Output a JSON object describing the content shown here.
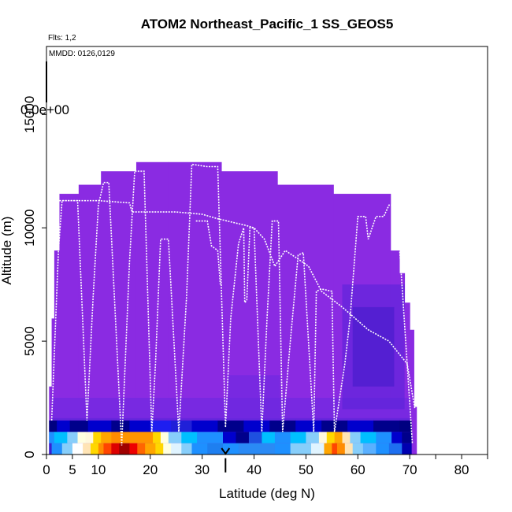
{
  "chart_data": {
    "type": "heatmap",
    "title": "ATOM2 Northeast_Pacific_1 SS_GEOS5",
    "subtitle": "Flts: 1,2",
    "annotation": "MMDD: 0126,0129",
    "colorbar_label": "0.0e+00",
    "xlabel": "Latitude (deg N)",
    "ylabel": "Altitude (m)",
    "xlim": [
      0,
      85
    ],
    "ylim": [
      0,
      18000
    ],
    "x_ticks": [
      0,
      5,
      10,
      20,
      30,
      40,
      50,
      60,
      70,
      80
    ],
    "x_minor_ticks": [
      75,
      85
    ],
    "y_ticks": [
      0,
      5000,
      10000,
      15000
    ],
    "grid": false,
    "background_color": "#8a2be2",
    "profile_color": "#ffffff",
    "arrow_marker_lat": 34.5,
    "column_tops": [
      {
        "x0": 0.5,
        "x1": 1.0,
        "top": 3000
      },
      {
        "x0": 1.0,
        "x1": 1.5,
        "top": 6000
      },
      {
        "x0": 1.5,
        "x1": 2.5,
        "top": 9000
      },
      {
        "x0": 2.5,
        "x1": 6.2,
        "top": 11500
      },
      {
        "x0": 6.2,
        "x1": 10.5,
        "top": 11900
      },
      {
        "x0": 10.5,
        "x1": 17.3,
        "top": 12500
      },
      {
        "x0": 17.3,
        "x1": 23.5,
        "top": 12900
      },
      {
        "x0": 23.5,
        "x1": 33.7,
        "top": 12900
      },
      {
        "x0": 33.7,
        "x1": 44.5,
        "top": 12500
      },
      {
        "x0": 44.5,
        "x1": 55.3,
        "top": 11900
      },
      {
        "x0": 55.3,
        "x1": 66.3,
        "top": 11500
      },
      {
        "x0": 66.3,
        "x1": 68.0,
        "top": 9000
      },
      {
        "x0": 68.0,
        "x1": 69.0,
        "top": 8000
      },
      {
        "x0": 69.0,
        "x1": 70.0,
        "top": 6700
      },
      {
        "x0": 70.0,
        "x1": 70.8,
        "top": 5500
      },
      {
        "x0": 70.8,
        "x1": 71.3,
        "top": 2100
      }
    ],
    "blue_patches": [
      {
        "x": [
          1,
          70
        ],
        "y": [
          1000,
          1600
        ],
        "color": "#3f1fd0"
      },
      {
        "x": [
          1,
          70
        ],
        "y": [
          1500,
          2500
        ],
        "color": "#6a28e0"
      },
      {
        "x": [
          57,
          69
        ],
        "y": [
          2000,
          7500
        ],
        "color": "#5522d8"
      },
      {
        "x": [
          59,
          67
        ],
        "y": [
          3000,
          6500
        ],
        "color": "#4019c8"
      },
      {
        "x": [
          35,
          45
        ],
        "y": [
          1500,
          3500
        ],
        "color": "#6a28e0"
      }
    ],
    "bands": [
      {
        "name": "band_0_500",
        "y": [
          0,
          500
        ],
        "segments": [
          [
            0.5,
            1.0,
            "#3a1fd0"
          ],
          [
            1.0,
            3.0,
            "#1e90ff"
          ],
          [
            3.0,
            5.0,
            "#87cefa"
          ],
          [
            5.0,
            7.0,
            "#ffffff"
          ],
          [
            7.0,
            8.5,
            "#ffe4b5"
          ],
          [
            8.5,
            10.0,
            "#ffd700"
          ],
          [
            10.0,
            11.0,
            "#ff8c00"
          ],
          [
            11.0,
            12.5,
            "#ff4500"
          ],
          [
            12.5,
            14.0,
            "#dd0000"
          ],
          [
            14.0,
            16.0,
            "#a00000"
          ],
          [
            16.0,
            17.5,
            "#ee0000"
          ],
          [
            17.5,
            19.0,
            "#ff6600"
          ],
          [
            19.0,
            21.0,
            "#ffa500"
          ],
          [
            21.0,
            22.5,
            "#ffd700"
          ],
          [
            22.5,
            24.0,
            "#ffffe0"
          ],
          [
            24.0,
            26.0,
            "#e0f4ff"
          ],
          [
            26.0,
            28.0,
            "#87cefa"
          ],
          [
            28.0,
            31.0,
            "#1e90ff"
          ],
          [
            31.0,
            34.0,
            "#1e7ff0"
          ],
          [
            34.0,
            37.0,
            "#1e90ff"
          ],
          [
            37.0,
            44.0,
            "#2a8af5"
          ],
          [
            44.0,
            47.0,
            "#1e90ff"
          ],
          [
            47.0,
            51.0,
            "#87cefa"
          ],
          [
            51.0,
            53.5,
            "#e0f4ff"
          ],
          [
            53.5,
            55.0,
            "#ffa500"
          ],
          [
            55.0,
            56.0,
            "#ff4500"
          ],
          [
            56.0,
            57.5,
            "#ff8c00"
          ],
          [
            57.5,
            59.0,
            "#ffe4b5"
          ],
          [
            59.0,
            61.0,
            "#87cefa"
          ],
          [
            61.0,
            63.5,
            "#5ab0ff"
          ],
          [
            63.5,
            66.0,
            "#1e90ff"
          ],
          [
            66.0,
            68.5,
            "#1e6ff0"
          ],
          [
            68.5,
            70.3,
            "#0000b0"
          ]
        ]
      },
      {
        "name": "band_500_1000",
        "y": [
          500,
          1000
        ],
        "segments": [
          [
            0.5,
            1.5,
            "#1e90ff"
          ],
          [
            1.5,
            4.0,
            "#00bfff"
          ],
          [
            4.0,
            6.0,
            "#87cefa"
          ],
          [
            6.0,
            7.5,
            "#ffffe0"
          ],
          [
            7.5,
            9.0,
            "#fff8dc"
          ],
          [
            9.0,
            10.5,
            "#ffd700"
          ],
          [
            10.5,
            12.5,
            "#ffa500"
          ],
          [
            12.5,
            14.5,
            "#ff8c00"
          ],
          [
            14.5,
            20.5,
            "#ff9500"
          ],
          [
            20.5,
            22.0,
            "#ffd700"
          ],
          [
            22.0,
            23.5,
            "#ffffe0"
          ],
          [
            23.5,
            26.0,
            "#87cefa"
          ],
          [
            26.0,
            29.0,
            "#00bfff"
          ],
          [
            29.0,
            34.0,
            "#1e90ff"
          ],
          [
            34.0,
            36.5,
            "#0000cd"
          ],
          [
            36.5,
            39.0,
            "#00008b"
          ],
          [
            39.0,
            41.5,
            "#1e50e0"
          ],
          [
            41.5,
            44.0,
            "#00bfff"
          ],
          [
            44.0,
            47.0,
            "#1e90ff"
          ],
          [
            47.0,
            50.0,
            "#00bfff"
          ],
          [
            50.0,
            52.5,
            "#87cefa"
          ],
          [
            52.5,
            54.0,
            "#fff8dc"
          ],
          [
            54.0,
            55.5,
            "#ffd700"
          ],
          [
            55.5,
            57.0,
            "#ffa500"
          ],
          [
            57.0,
            58.5,
            "#ffe4b5"
          ],
          [
            58.5,
            60.5,
            "#87cefa"
          ],
          [
            60.5,
            63.5,
            "#00bfff"
          ],
          [
            63.5,
            66.5,
            "#1e90ff"
          ],
          [
            66.5,
            68.5,
            "#0000cd"
          ],
          [
            68.5,
            70.3,
            "#00008b"
          ]
        ]
      },
      {
        "name": "band_1000_1500",
        "y": [
          1000,
          1500
        ],
        "segments": [
          [
            0.5,
            2.0,
            "#000080"
          ],
          [
            2.0,
            4.5,
            "#0000cd"
          ],
          [
            4.5,
            8.0,
            "#00008b"
          ],
          [
            8.0,
            12.5,
            "#0000cd"
          ],
          [
            12.5,
            16.0,
            "#00008b"
          ],
          [
            16.0,
            20.0,
            "#0000cd"
          ],
          [
            20.0,
            24.0,
            "#1e1ef0"
          ],
          [
            24.0,
            28.0,
            "#2020d8"
          ],
          [
            28.0,
            33.0,
            "#0000cd"
          ],
          [
            33.0,
            38.0,
            "#00008b"
          ],
          [
            38.0,
            43.0,
            "#0000cd"
          ],
          [
            43.0,
            48.0,
            "#00008b"
          ],
          [
            48.0,
            53.0,
            "#0000cd"
          ],
          [
            53.0,
            58.0,
            "#00008b"
          ],
          [
            58.0,
            63.0,
            "#0000cd"
          ],
          [
            63.0,
            68.0,
            "#00008b"
          ],
          [
            68.0,
            70.3,
            "#000080"
          ]
        ]
      }
    ],
    "profiles": [
      {
        "name": "flight_1",
        "points": [
          [
            1.0,
            1500
          ],
          [
            2.3,
            9000
          ],
          [
            3.0,
            11200
          ],
          [
            5.0,
            11200
          ],
          [
            6.0,
            11200
          ],
          [
            7.8,
            1500
          ],
          [
            9.0,
            7000
          ],
          [
            10.0,
            11000
          ],
          [
            11.0,
            12000
          ],
          [
            12.0,
            12000
          ],
          [
            14.5,
            400
          ],
          [
            16.0,
            8500
          ],
          [
            17.0,
            12500
          ],
          [
            18.8,
            12500
          ],
          [
            20.3,
            1000
          ],
          [
            21.0,
            4000
          ],
          [
            22.0,
            9500
          ],
          [
            23.5,
            9500
          ],
          [
            25.5,
            1000
          ],
          [
            27.0,
            7000
          ],
          [
            28.0,
            12800
          ],
          [
            31.0,
            12700
          ],
          [
            33.0,
            12700
          ],
          [
            34.5,
            1200
          ],
          [
            35.5,
            6000
          ],
          [
            37.0,
            9300
          ],
          [
            38.0,
            10000
          ],
          [
            38.2,
            6700
          ],
          [
            38.6,
            6800
          ],
          [
            39.2,
            10000
          ],
          [
            40.0,
            10000
          ],
          [
            41.5,
            1000
          ],
          [
            42.5,
            6000
          ],
          [
            43.5,
            10300
          ],
          [
            44.7,
            10300
          ],
          [
            45.5,
            1000
          ],
          [
            47.0,
            5000
          ],
          [
            48.5,
            8800
          ],
          [
            49.5,
            8900
          ],
          [
            51.5,
            1000
          ],
          [
            52.0,
            7200
          ],
          [
            53.0,
            7300
          ],
          [
            55.0,
            7200
          ],
          [
            55.5,
            1000
          ],
          [
            57.5,
            4000
          ],
          [
            58.5,
            6000
          ],
          [
            60.0,
            10500
          ],
          [
            61.5,
            10500
          ],
          [
            62.0,
            9500
          ],
          [
            63.5,
            10500
          ],
          [
            65.0,
            10500
          ],
          [
            66.0,
            11000
          ],
          [
            67.5,
            11000
          ],
          [
            69.5,
            4000
          ],
          [
            70.5,
            500
          ]
        ]
      },
      {
        "name": "flight_2",
        "points": [
          [
            2.5,
            11200
          ],
          [
            10.0,
            11200
          ],
          [
            16.0,
            11100
          ],
          [
            16.5,
            10700
          ],
          [
            25.0,
            10700
          ],
          [
            30.0,
            10600
          ],
          [
            33.0,
            10400
          ],
          [
            38.5,
            10100
          ],
          [
            40.0,
            10000
          ],
          [
            42.0,
            9500
          ],
          [
            44.0,
            8300
          ],
          [
            46.0,
            9000
          ],
          [
            48.0,
            8700
          ],
          [
            50.5,
            8300
          ],
          [
            53.0,
            7200
          ],
          [
            57.0,
            6500
          ],
          [
            62.0,
            5500
          ],
          [
            66.0,
            5000
          ],
          [
            69.5,
            4000
          ],
          [
            71.0,
            2000
          ]
        ]
      },
      {
        "name": "flight_2_seg",
        "points": [
          [
            28.8,
            10300
          ],
          [
            31.0,
            10300
          ],
          [
            31.8,
            9200
          ],
          [
            33.0,
            9000
          ],
          [
            33.5,
            7500
          ]
        ]
      }
    ]
  }
}
